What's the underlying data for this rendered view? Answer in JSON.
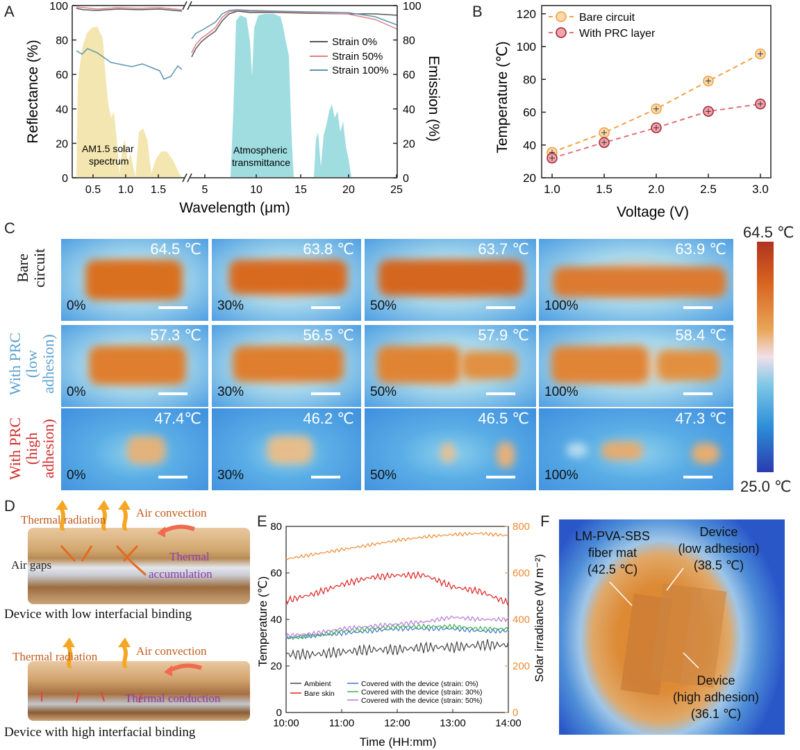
{
  "panels": {
    "A": "A",
    "B": "B",
    "C": "C",
    "D": "D",
    "E": "E",
    "F": "F"
  },
  "panelA": {
    "xlabel": "Wavelength (μm)",
    "ylabel_left": "Reflectance (%)",
    "ylabel_right": "Emission (%)",
    "y_ticks": [
      "0",
      "20",
      "40",
      "60",
      "80",
      "100"
    ],
    "x_ticks_left": [
      "0.5",
      "1.0",
      "1.5"
    ],
    "x_ticks_right": [
      "5",
      "10",
      "15",
      "20",
      "25"
    ],
    "legend": [
      "Strain 0%",
      "Strain 50%",
      "Strain 100%"
    ],
    "annotation_solar": [
      "AM1.5 solar",
      "spectrum"
    ],
    "annotation_atm": [
      "Atmospheric",
      "transmittance"
    ],
    "colors": {
      "s0": "#555555",
      "s50": "#e07f86",
      "s100": "#5b95b0",
      "solar": "#f3e6b0",
      "atm": "#9fdde1"
    }
  },
  "chart_data": [
    {
      "type": "line",
      "title": "",
      "xlabel": "Voltage (V)",
      "ylabel": "Temperature (℃)",
      "x": [
        1.0,
        1.5,
        2.0,
        2.5,
        3.0
      ],
      "x_tick_labels": [
        "1.0",
        "1.5",
        "2.0",
        "2.5",
        "3.0"
      ],
      "y_tick_labels": [
        "20",
        "40",
        "60",
        "80",
        "100",
        "120"
      ],
      "ylim": [
        20,
        125
      ],
      "xlim": [
        0.9,
        3.1
      ],
      "series": [
        {
          "name": "Bare circuit",
          "values": [
            35.5,
            47.5,
            62,
            79,
            95.5
          ],
          "color": "#f0a040"
        },
        {
          "name": "With PRC layer",
          "values": [
            32,
            41.5,
            50.5,
            60.5,
            65
          ],
          "color": "#e26d7a"
        }
      ]
    },
    {
      "type": "line",
      "title": "",
      "xlabel": "Time (HH:mm)",
      "ylabel": "Temperature (℃)",
      "ylabel_right": "Solar irradiance (W m⁻²)",
      "x_tick_labels": [
        "10:00",
        "11:00",
        "12:00",
        "13:00",
        "14:00"
      ],
      "y_tick_labels": [
        "0",
        "20",
        "40",
        "60",
        "80"
      ],
      "y2_tick_labels": [
        "0",
        "200",
        "400",
        "600",
        "800"
      ],
      "ylim": [
        0,
        80
      ],
      "y2lim": [
        0,
        800
      ],
      "x_hours": [
        10,
        10.5,
        11,
        11.5,
        12,
        12.5,
        13,
        13.5,
        14
      ],
      "series": [
        {
          "name": "Ambient",
          "values": [
            25,
            25,
            26,
            27,
            27,
            28,
            28,
            29,
            29
          ],
          "color": "#444444"
        },
        {
          "name": "Bare skin",
          "values": [
            48,
            51,
            55,
            58,
            59,
            59,
            54,
            52,
            47
          ],
          "color": "#e02020"
        },
        {
          "name": "Covered with the device (strain: 0%)",
          "values": [
            32,
            33,
            34,
            35,
            36,
            36,
            36,
            35,
            35
          ],
          "color": "#3f74c6"
        },
        {
          "name": "Covered with the device (strain: 30%)",
          "values": [
            32,
            33,
            35,
            36,
            37,
            37,
            37,
            36,
            36
          ],
          "color": "#3cae4f"
        },
        {
          "name": "Covered with the device (strain: 50%)",
          "values": [
            33,
            34,
            36,
            37,
            38,
            39,
            41,
            40,
            40
          ],
          "color": "#b57ad9"
        },
        {
          "name": "Solar irradiance",
          "axis": "right",
          "values": [
            660,
            680,
            700,
            720,
            740,
            755,
            765,
            770,
            760
          ],
          "color": "#f08a30"
        }
      ]
    }
  ],
  "panelC": {
    "colorbar_max": "64.5 ℃",
    "colorbar_min": "25.0 ℃",
    "rows": [
      {
        "label_lines": [
          "Bare",
          "circuit"
        ],
        "color": "#111111",
        "cells": [
          {
            "temp": "64.5 ℃",
            "strain": "0%"
          },
          {
            "temp": "63.8 ℃",
            "strain": "30%"
          },
          {
            "temp": "63.7 ℃",
            "strain": "50%"
          },
          {
            "temp": "63.9 ℃",
            "strain": "100%"
          }
        ]
      },
      {
        "label_lines": [
          "With PRC",
          "(low",
          "adhesion)"
        ],
        "color": "#5aa0d0",
        "cells": [
          {
            "temp": "57.3 ℃",
            "strain": "0%"
          },
          {
            "temp": "56.5 ℃",
            "strain": "30%"
          },
          {
            "temp": "57.9 ℃",
            "strain": "50%"
          },
          {
            "temp": "58.4 ℃",
            "strain": "100%"
          }
        ]
      },
      {
        "label_lines": [
          "With PRC",
          "(high",
          "adhesion)"
        ],
        "color": "#d02a2a",
        "cells": [
          {
            "temp": "47.4℃",
            "strain": "0%"
          },
          {
            "temp": "46.2 ℃",
            "strain": "30%"
          },
          {
            "temp": "46.5 ℃",
            "strain": "50%"
          },
          {
            "temp": "47.3 ℃",
            "strain": "100%"
          }
        ]
      }
    ]
  },
  "panelD": {
    "top": {
      "radiation": "Thermal radiation",
      "convection": "Air convection",
      "gaps": "Air gaps",
      "accum1": "Thermal",
      "accum2": "accumulation",
      "caption": "Device with low interfacial binding"
    },
    "bottom": {
      "radiation": "Thermal radiation",
      "convection": "Air convection",
      "conduction": "Thermal conduction",
      "caption": "Device with high interfacial binding"
    }
  },
  "panelF": {
    "mat_lines": [
      "LM-PVA-SBS",
      "fiber mat",
      "(42.5 ℃)"
    ],
    "low_lines": [
      "Device",
      "(low adhesion)",
      "(38.5 ℃)"
    ],
    "high_lines": [
      "Device",
      "(high adhesion)",
      "(36.1 ℃)"
    ]
  }
}
